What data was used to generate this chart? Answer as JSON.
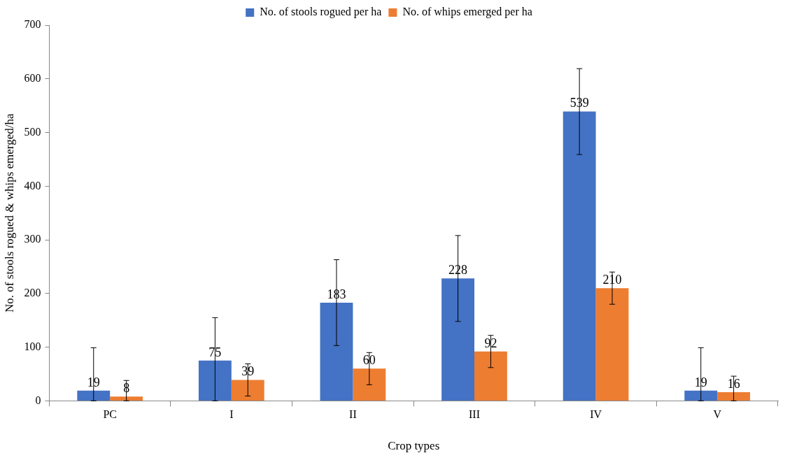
{
  "chart_data": {
    "type": "bar",
    "xlabel": "Crop types",
    "ylabel": "No. of stools rogued & whips emerged/ha",
    "categories": [
      "PC",
      "I",
      "II",
      "III",
      "IV",
      "V"
    ],
    "series": [
      {
        "name": "No. of stools rogued per ha",
        "color": "#4472c4",
        "values": [
          19,
          75,
          183,
          228,
          539,
          19
        ],
        "errors": [
          [
            0,
            99
          ],
          [
            0,
            155
          ],
          [
            103,
            263
          ],
          [
            148,
            308
          ],
          [
            459,
            619
          ],
          [
            0,
            99
          ]
        ]
      },
      {
        "name": "No. of whips emerged per ha",
        "color": "#ed7d31",
        "values": [
          8,
          39,
          60,
          92,
          210,
          16
        ],
        "errors": [
          [
            0,
            38
          ],
          [
            9,
            69
          ],
          [
            30,
            90
          ],
          [
            62,
            122
          ],
          [
            180,
            240
          ],
          [
            0,
            46
          ]
        ]
      }
    ],
    "ylim": [
      0,
      700
    ],
    "yticks": [
      0,
      100,
      200,
      300,
      400,
      500,
      600,
      700
    ],
    "grid": false,
    "legend": "top",
    "data_labels": true
  }
}
